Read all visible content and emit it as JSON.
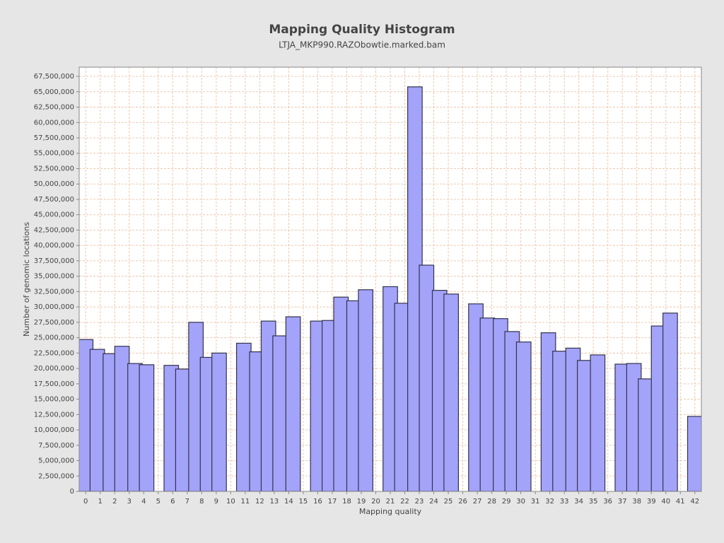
{
  "chart_data": {
    "type": "bar",
    "title": "Mapping Quality Histogram",
    "subtitle": "LTJA_MKP990.RAZObowtie.marked.bam",
    "x_label": "Mapping quality",
    "y_label": "Number of genomic locations",
    "color": "#a3a3fa",
    "edge_color": "#33334d",
    "grid": true,
    "x": [
      0.0,
      0.8,
      1.7,
      2.5,
      3.4,
      4.2,
      5.9,
      6.7,
      7.6,
      8.4,
      9.2,
      10.9,
      11.8,
      12.6,
      13.4,
      14.3,
      16.0,
      16.8,
      17.6,
      18.5,
      19.3,
      21.0,
      21.8,
      22.7,
      23.5,
      24.4,
      25.2,
      26.9,
      27.7,
      28.6,
      29.4,
      30.2,
      31.9,
      32.7,
      33.6,
      34.4,
      35.3,
      37.0,
      37.8,
      38.6,
      39.5,
      40.3,
      42.0
    ],
    "values": [
      24700000,
      23100000,
      22400000,
      23600000,
      20800000,
      20600000,
      20500000,
      19900000,
      27500000,
      21800000,
      22500000,
      24100000,
      22700000,
      27700000,
      25300000,
      28400000,
      27700000,
      27800000,
      31600000,
      31000000,
      32800000,
      33300000,
      30600000,
      65800000,
      36800000,
      32700000,
      32100000,
      30500000,
      28200000,
      28100000,
      26000000,
      24300000,
      25800000,
      22800000,
      23300000,
      21300000,
      22200000,
      20700000,
      20800000,
      18300000,
      26900000,
      29000000,
      12200000
    ],
    "xlim": [
      -0.45,
      42.45
    ],
    "xticks": [
      0,
      1,
      2,
      3,
      4,
      5,
      6,
      7,
      8,
      9,
      10,
      11,
      12,
      13,
      14,
      15,
      16,
      17,
      18,
      19,
      20,
      21,
      22,
      23,
      24,
      25,
      26,
      27,
      28,
      29,
      30,
      31,
      32,
      33,
      34,
      35,
      36,
      37,
      38,
      39,
      40,
      41,
      42
    ],
    "ylim": [
      0,
      69000000
    ],
    "yticks": [
      0,
      {
        "value": 2500000,
        "label": "2,500,000"
      },
      {
        "value": 5000000,
        "label": "5,000,000"
      },
      {
        "value": 7500000,
        "label": "7,500,000"
      },
      {
        "value": 10000000,
        "label": "10,000,000"
      },
      {
        "value": 12500000,
        "label": "12,500,000"
      },
      {
        "value": 15000000,
        "label": "15,000,000"
      },
      {
        "value": 17500000,
        "label": "17,500,000"
      },
      {
        "value": 20000000,
        "label": "20,000,000"
      },
      {
        "value": 22500000,
        "label": "22,500,000"
      },
      {
        "value": 25000000,
        "label": "25,000,000"
      },
      {
        "value": 27500000,
        "label": "27,500,000"
      },
      {
        "value": 30000000,
        "label": "30,000,000"
      },
      {
        "value": 32500000,
        "label": "32,500,000"
      },
      {
        "value": 35000000,
        "label": "35,000,000"
      },
      {
        "value": 37500000,
        "label": "37,500,000"
      },
      {
        "value": 40000000,
        "label": "40,000,000"
      },
      {
        "value": 42500000,
        "label": "42,500,000"
      },
      {
        "value": 45000000,
        "label": "45,000,000"
      },
      {
        "value": 47500000,
        "label": "47,500,000"
      },
      {
        "value": 50000000,
        "label": "50,000,000"
      },
      {
        "value": 52500000,
        "label": "52,500,000"
      },
      {
        "value": 55000000,
        "label": "55,000,000"
      },
      {
        "value": 57500000,
        "label": "57,500,000"
      },
      {
        "value": 60000000,
        "label": "60,000,000"
      },
      {
        "value": 62500000,
        "label": "62,500,000"
      },
      {
        "value": 65000000,
        "label": "65,000,000"
      },
      {
        "value": 67500000,
        "label": "67,500,000"
      }
    ]
  }
}
